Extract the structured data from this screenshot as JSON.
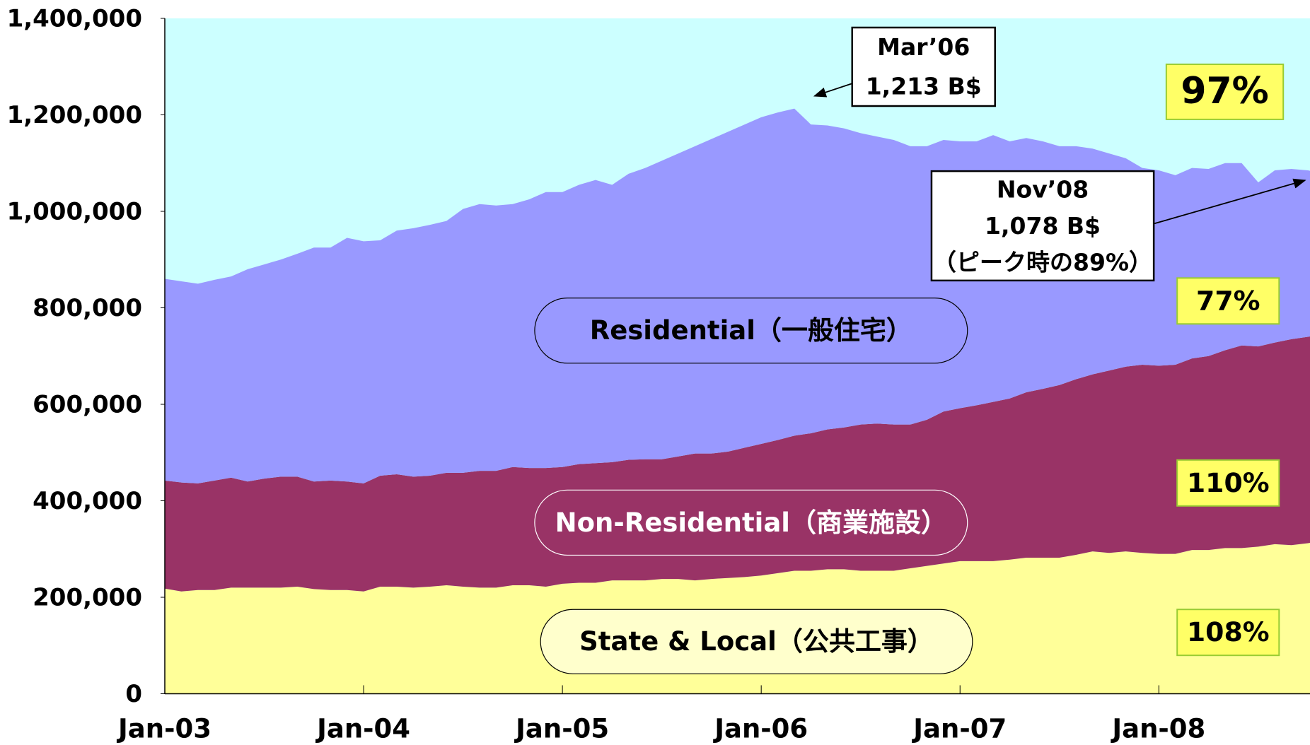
{
  "chart_data": {
    "type": "area",
    "categories": [
      "Jan-03",
      null,
      null,
      null,
      null,
      null,
      null,
      null,
      null,
      null,
      null,
      null,
      "Jan-04",
      null,
      null,
      null,
      null,
      null,
      null,
      null,
      null,
      null,
      null,
      null,
      "Jan-05",
      null,
      null,
      null,
      null,
      null,
      null,
      null,
      null,
      null,
      null,
      null,
      "Jan-06",
      null,
      null,
      null,
      null,
      null,
      null,
      null,
      null,
      null,
      null,
      null,
      "Jan-07",
      null,
      null,
      null,
      null,
      null,
      null,
      null,
      null,
      null,
      null,
      null,
      "Jan-08",
      null,
      null,
      null,
      null,
      null,
      null,
      null,
      null,
      null,
      null
    ],
    "series": [
      {
        "name": "State & Local（公共工事）",
        "color": "#ffff99",
        "label_color": "#000000",
        "values": [
          218000,
          212000,
          215000,
          215000,
          220000,
          220000,
          220000,
          220000,
          222000,
          217000,
          215000,
          215000,
          212000,
          222000,
          222000,
          220000,
          222000,
          225000,
          222000,
          220000,
          220000,
          225000,
          225000,
          222000,
          228000,
          230000,
          230000,
          235000,
          235000,
          235000,
          238000,
          238000,
          235000,
          238000,
          240000,
          242000,
          245000,
          250000,
          255000,
          255000,
          258000,
          258000,
          255000,
          255000,
          255000,
          260000,
          265000,
          270000,
          275000,
          275000,
          275000,
          278000,
          282000,
          282000,
          282000,
          288000,
          295000,
          292000,
          295000,
          292000,
          290000,
          290000,
          298000,
          298000,
          302000,
          302000,
          305000,
          310000,
          308000,
          312000,
          318000
        ]
      },
      {
        "name": "Non-Residential（商業施設）",
        "color": "#993366",
        "label_color": "#ffffff",
        "values": [
          224000,
          226000,
          221000,
          227000,
          228000,
          220000,
          226000,
          230000,
          228000,
          223000,
          227000,
          225000,
          224000,
          230000,
          233000,
          230000,
          230000,
          233000,
          236000,
          242000,
          242000,
          245000,
          243000,
          246000,
          242000,
          246000,
          248000,
          245000,
          250000,
          251000,
          248000,
          254000,
          263000,
          260000,
          262000,
          268000,
          273000,
          276000,
          280000,
          285000,
          290000,
          294000,
          303000,
          305000,
          303000,
          298000,
          303000,
          315000,
          317000,
          323000,
          330000,
          334000,
          343000,
          350000,
          358000,
          364000,
          367000,
          378000,
          383000,
          390000,
          390000,
          392000,
          397000,
          402000,
          410000,
          420000,
          415000,
          418000,
          427000,
          428000,
          427000
        ]
      },
      {
        "name": "Residential（一般住宅）",
        "color": "#9999ff",
        "label_color": "#000000",
        "values": [
          418000,
          417000,
          414000,
          416000,
          417000,
          440000,
          444000,
          450000,
          462000,
          485000,
          483000,
          505000,
          502000,
          488000,
          505000,
          515000,
          520000,
          522000,
          547000,
          553000,
          550000,
          545000,
          557000,
          572000,
          570000,
          579000,
          587000,
          575000,
          593000,
          604000,
          619000,
          628000,
          637000,
          652000,
          663000,
          670000,
          677000,
          679000,
          678000,
          640000,
          630000,
          620000,
          604000,
          595000,
          590000,
          577000,
          567000,
          563000,
          553000,
          547000,
          553000,
          533000,
          527000,
          513000,
          495000,
          483000,
          468000,
          450000,
          432000,
          408000,
          405000,
          393000,
          395000,
          388000,
          388000,
          378000,
          340000,
          357000,
          353000,
          345000,
          333000
        ]
      }
    ],
    "ylim": [
      0,
      1400000
    ],
    "yticks": [
      0,
      {
        "value": 200000,
        "label": "200,000"
      },
      {
        "value": 400000,
        "label": "400,000"
      },
      {
        "value": 600000,
        "label": "600,000"
      },
      {
        "value": 800000,
        "label": "800,000"
      },
      {
        "value": 1000000,
        "label": "1,000,000"
      },
      {
        "value": 1200000,
        "label": "1,200,000"
      },
      {
        "value": 1400000,
        "label": "1,400,000"
      }
    ],
    "background": "#ccffff",
    "callouts": [
      [
        "Mar’06",
        "1,213 B$"
      ],
      [
        "Nov’08",
        "1,078 B$",
        "（ピーク時の89%）"
      ]
    ],
    "share_labels": [
      "97%",
      "77%",
      "110%",
      "108%"
    ]
  }
}
